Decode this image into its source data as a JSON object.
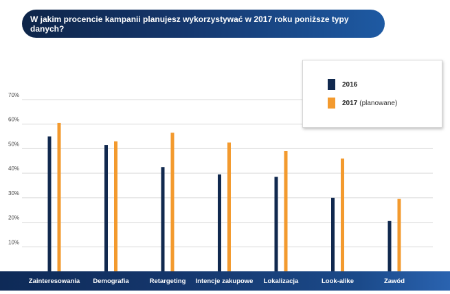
{
  "title": "W jakim procencie kampanii planujesz wykorzystywać w 2017 roku poniższe typy danych?",
  "chart_data": {
    "type": "bar",
    "categories": [
      "Zainteresowania",
      "Demografia",
      "Retargeting",
      "Intencje zakupowe",
      "Lokalizacja",
      "Look-alike",
      "Zawód"
    ],
    "series": [
      {
        "name": "2016",
        "color": "#11294f",
        "values": [
          55,
          51.5,
          42.5,
          39.5,
          38.5,
          30,
          20.5
        ]
      },
      {
        "name": "2017",
        "name_suffix": "(planowane)",
        "color": "#f39a2e",
        "values": [
          60.5,
          53,
          56.5,
          52.5,
          49,
          46,
          29.5
        ]
      }
    ],
    "yticks": [
      {
        "value": 10,
        "label": "10%"
      },
      {
        "value": 20,
        "label": "20%"
      },
      {
        "value": 30,
        "label": "30%"
      },
      {
        "value": 40,
        "label": "40%"
      },
      {
        "value": 50,
        "label": "50%"
      },
      {
        "value": 60,
        "label": "60%"
      },
      {
        "value": 70,
        "label": "70%"
      }
    ],
    "ylim": [
      0,
      70
    ],
    "xlabel": "",
    "ylabel": "",
    "grid": true,
    "legend_position": "top-right"
  }
}
